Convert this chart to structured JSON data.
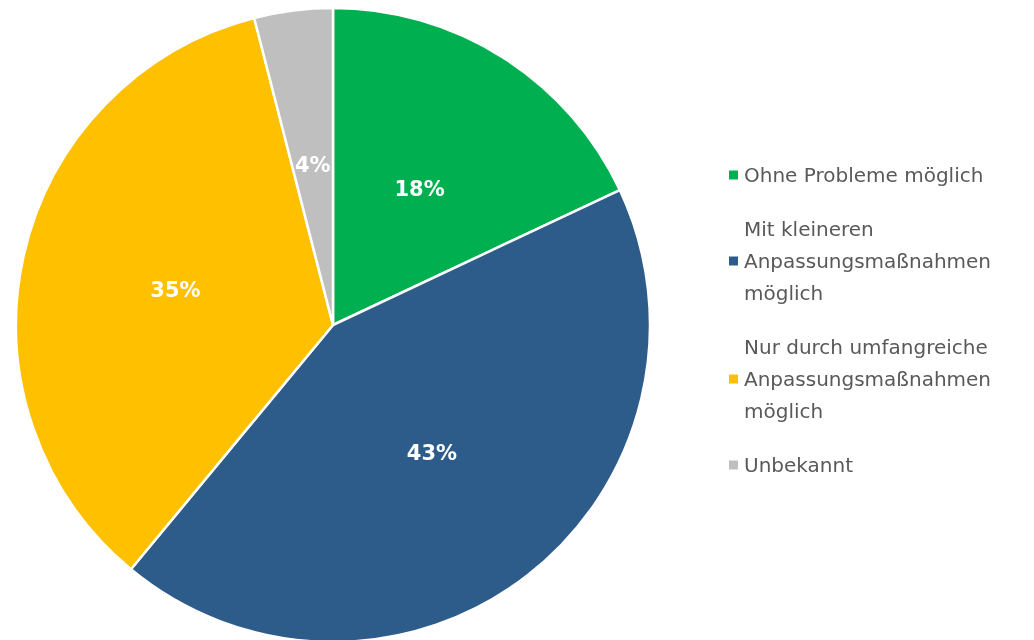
{
  "chart_data": {
    "type": "pie",
    "categories": [
      "Ohne Probleme möglich",
      "Mit kleineren Anpassungsmaßnahmen möglich",
      "Nur durch umfangreiche Anpassungsmaßnahmen möglich",
      "Unbekannt"
    ],
    "values": [
      18,
      43,
      35,
      4
    ],
    "colors": [
      "#00b050",
      "#2e5c8a",
      "#ffc000",
      "#bfbfbf"
    ],
    "value_labels": [
      "18%",
      "43%",
      "35%",
      "4%"
    ],
    "legend": "right"
  }
}
